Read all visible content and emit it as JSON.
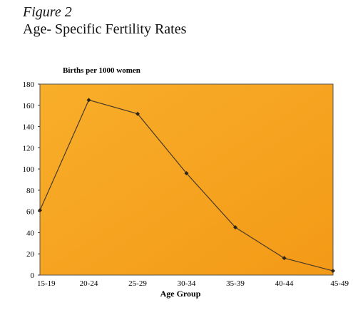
{
  "figure": {
    "label": "Figure 2",
    "title": "Age- Specific Fertility Rates"
  },
  "chart_data": {
    "type": "line",
    "title": "",
    "ylabel": "Births per 1000 women",
    "xlabel": "Age Group",
    "categories": [
      "15-19",
      "20-24",
      "25-29",
      "30-34",
      "35-39",
      "40-44",
      "45-49"
    ],
    "series": [
      {
        "values": [
          61,
          165,
          152,
          96,
          45,
          16,
          4
        ]
      }
    ],
    "ylim": [
      0,
      180
    ],
    "yticks": [
      0,
      20,
      40,
      60,
      80,
      100,
      120,
      140,
      160,
      180
    ],
    "grid": false,
    "legend": "none",
    "colors": {
      "plot_background": "#f7a11c",
      "line": "#4a3a2a",
      "marker": "#2e2418",
      "axis": "#333333"
    }
  }
}
